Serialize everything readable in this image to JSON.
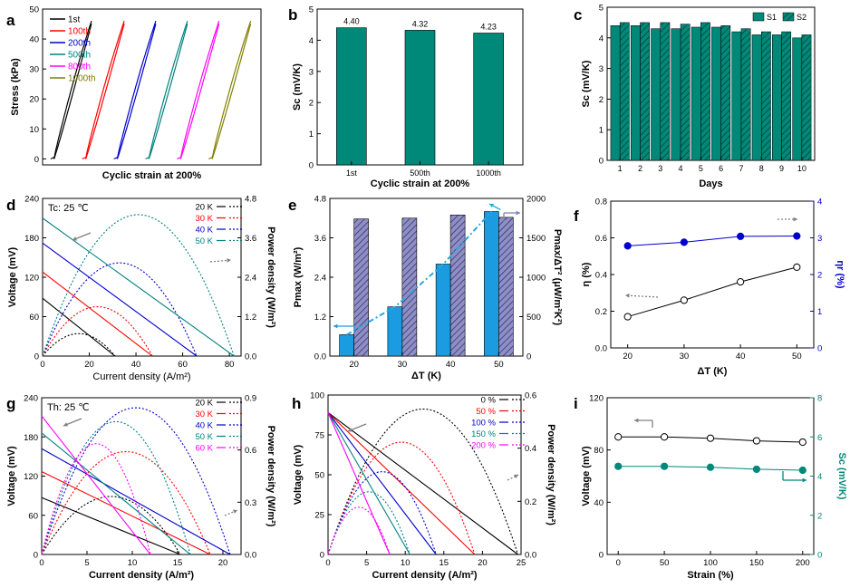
{
  "chart_data": [
    {
      "panel": "a",
      "type": "line",
      "xlabel": "Cyclic strain at 200%",
      "ylabel": "Stress (kPa)",
      "ylim": [
        -2,
        50
      ],
      "yticks": [
        0,
        10,
        20,
        30,
        40,
        50
      ],
      "legend_position": "top-left",
      "series": [
        {
          "name": "1st",
          "color": "#000000",
          "x_start": 0,
          "x_end": 0.65,
          "y_max": 46
        },
        {
          "name": "100th",
          "color": "#ff0000",
          "x_start": 0.55,
          "x_end": 1.22,
          "y_max": 46
        },
        {
          "name": "200th",
          "color": "#0000cc",
          "x_start": 1.1,
          "x_end": 1.77,
          "y_max": 46
        },
        {
          "name": "500th",
          "color": "#008080",
          "x_start": 1.65,
          "x_end": 2.32,
          "y_max": 46
        },
        {
          "name": "800th",
          "color": "#ff00ff",
          "x_start": 2.2,
          "x_end": 2.87,
          "y_max": 46
        },
        {
          "name": "1000th",
          "color": "#808000",
          "x_start": 2.75,
          "x_end": 3.42,
          "y_max": 46
        }
      ]
    },
    {
      "panel": "b",
      "type": "bar",
      "xlabel": "Cyclic strain at 200%",
      "ylabel": "Sc (mV/K)",
      "ylim": [
        0,
        5
      ],
      "yticks": [
        0,
        1,
        2,
        3,
        4,
        5
      ],
      "categories": [
        "1st",
        "500th",
        "1000th"
      ],
      "values": [
        4.4,
        4.32,
        4.23
      ],
      "value_labels": [
        "4.40",
        "4.32",
        "4.23"
      ],
      "color": "#008878"
    },
    {
      "panel": "c",
      "type": "bar",
      "xlabel": "Days",
      "ylabel": "Sc (mV/K)",
      "ylim": [
        0,
        5
      ],
      "yticks": [
        0,
        1,
        2,
        3,
        4,
        5
      ],
      "categories": [
        "1",
        "2",
        "3",
        "4",
        "5",
        "6",
        "7",
        "8",
        "9",
        "10"
      ],
      "legend_position": "top-right",
      "series": [
        {
          "name": "S1",
          "values": [
            4.4,
            4.4,
            4.3,
            4.3,
            4.35,
            4.35,
            4.2,
            4.1,
            4.1,
            4.0
          ],
          "color": "#008878"
        },
        {
          "name": "S2",
          "values": [
            4.5,
            4.5,
            4.5,
            4.45,
            4.5,
            4.4,
            4.3,
            4.2,
            4.2,
            4.1
          ],
          "color": "#008878",
          "hatch": true
        }
      ]
    },
    {
      "panel": "d",
      "type": "line",
      "annotation": "Tc: 25 ℃",
      "xlabel": "Current density (A/m²)",
      "ylabel": "Voltage (mV)",
      "y2label": "Power density (W/m²)",
      "xlim": [
        0,
        85
      ],
      "ylim": [
        0,
        240
      ],
      "y2lim": [
        0,
        4.8
      ],
      "xticks": [
        0,
        20,
        40,
        60,
        80
      ],
      "yticks": [
        0,
        60,
        120,
        180,
        240
      ],
      "y2ticks": [
        "0.0",
        "1.2",
        "2.4",
        "3.6",
        "4.8"
      ],
      "legend_position": "top-right",
      "series": [
        {
          "name": "20 K",
          "color": "#000000",
          "v0": 88,
          "isc": 31
        },
        {
          "name": "30 K",
          "color": "#ff0000",
          "v0": 128,
          "isc": 47
        },
        {
          "name": "40 K",
          "color": "#0000cc",
          "v0": 172,
          "isc": 66
        },
        {
          "name": "50 K",
          "color": "#008080",
          "v0": 210,
          "isc": 82
        }
      ]
    },
    {
      "panel": "e",
      "type": "bar",
      "xlabel": "ΔT (K)",
      "ylabel": "Pmax (W/m²)",
      "y2label": "Pmax/ΔT² (μW/m²K²)",
      "ylim": [
        0,
        4.8
      ],
      "y2lim": [
        0,
        2000
      ],
      "yticks": [
        "0.0",
        "1.2",
        "2.4",
        "3.6",
        "4.8"
      ],
      "y2ticks": [
        "0",
        "500",
        "1000",
        "1500",
        "2000"
      ],
      "categories": [
        "20",
        "30",
        "40",
        "50"
      ],
      "series": [
        {
          "name": "Pmax",
          "values": [
            0.65,
            1.5,
            2.8,
            4.4
          ],
          "color": "#1b9ce0",
          "axis": "left"
        },
        {
          "name": "Pmax/ΔT²",
          "values": [
            1740,
            1750,
            1790,
            1760
          ],
          "color": "#7f7fb8",
          "hatch": true,
          "axis": "right"
        }
      ],
      "trend_color": "#29a8e0"
    },
    {
      "panel": "f",
      "type": "line",
      "xlabel": "ΔT (K)",
      "ylabel": "η (%)",
      "y2label": "ηr (%)",
      "xlim": [
        17,
        53
      ],
      "ylim": [
        0,
        0.8
      ],
      "y2lim": [
        0,
        4
      ],
      "xticks": [
        20,
        30,
        40,
        50
      ],
      "yticks": [
        "0.0",
        "0.2",
        "0.4",
        "0.6",
        "0.8"
      ],
      "y2ticks": [
        "0",
        "1",
        "2",
        "3",
        "4"
      ],
      "series": [
        {
          "name": "η",
          "x": [
            20,
            30,
            40,
            50
          ],
          "values": [
            0.17,
            0.26,
            0.36,
            0.44
          ],
          "color": "#000000",
          "axis": "left",
          "marker": "open-circle"
        },
        {
          "name": "ηr",
          "x": [
            20,
            30,
            40,
            50
          ],
          "values": [
            2.78,
            2.88,
            3.04,
            3.05
          ],
          "color": "#0000cc",
          "axis": "right",
          "marker": "filled-circle"
        }
      ]
    },
    {
      "panel": "g",
      "type": "line",
      "annotation": "Th: 25 ℃",
      "xlabel": "Current density (A/m²)",
      "ylabel": "Voltage (mV)",
      "y2label": "Power density (W/m²)",
      "xlim": [
        0,
        22
      ],
      "ylim": [
        0,
        240
      ],
      "y2lim": [
        0,
        0.9
      ],
      "xticks": [
        0,
        5,
        10,
        15,
        20
      ],
      "yticks": [
        0,
        60,
        120,
        180,
        240
      ],
      "y2ticks": [
        "0.0",
        "0.3",
        "0.6",
        "0.9"
      ],
      "legend_position": "top-right",
      "series": [
        {
          "name": "20 K",
          "color": "#000000",
          "v0": 87,
          "isc": 15.3
        },
        {
          "name": "30 K",
          "color": "#ff0000",
          "v0": 127,
          "isc": 18.6
        },
        {
          "name": "40 K",
          "color": "#0000cc",
          "v0": 162,
          "isc": 20.8
        },
        {
          "name": "50 K",
          "color": "#008080",
          "v0": 186,
          "isc": 16.4
        },
        {
          "name": "60 K",
          "color": "#ff00ff",
          "v0": 212,
          "isc": 12.0
        }
      ]
    },
    {
      "panel": "h",
      "type": "line",
      "xlabel": "Current density (A/m²)",
      "ylabel": "Voltage (mV)",
      "y2label": "Power density (W/m²)",
      "xlim": [
        0,
        25
      ],
      "ylim": [
        0,
        100
      ],
      "y2lim": [
        0,
        0.6
      ],
      "xticks": [
        0,
        5,
        10,
        15,
        20,
        25
      ],
      "yticks": [
        0,
        25,
        50,
        75,
        100
      ],
      "y2ticks": [
        "0.0",
        "0.2",
        "0.4",
        "0.6"
      ],
      "legend_position": "top-right",
      "series": [
        {
          "name": "0 %",
          "color": "#000000",
          "v0": 89,
          "isc": 24.6
        },
        {
          "name": "50 %",
          "color": "#ff0000",
          "v0": 89,
          "isc": 19.0
        },
        {
          "name": "100 %",
          "color": "#0000cc",
          "v0": 89,
          "isc": 14.0
        },
        {
          "name": "150 %",
          "color": "#008080",
          "v0": 89,
          "isc": 10.6
        },
        {
          "name": "200 %",
          "color": "#ff00ff",
          "v0": 89,
          "isc": 8.0
        }
      ]
    },
    {
      "panel": "i",
      "type": "line",
      "xlabel": "Strain (%)",
      "ylabel": "Voltage (mV)",
      "y2label": "Sc (mV/K)",
      "xlim": [
        -12,
        212
      ],
      "ylim": [
        0,
        120
      ],
      "y2lim": [
        0,
        8
      ],
      "xticks": [
        0,
        50,
        100,
        150,
        200
      ],
      "yticks": [
        0,
        40,
        80,
        120
      ],
      "y2ticks": [
        0,
        2,
        4,
        6,
        8
      ],
      "series": [
        {
          "name": "Voltage",
          "x": [
            0,
            50,
            100,
            150,
            200
          ],
          "values": [
            90,
            90,
            89,
            87,
            86
          ],
          "color": "#000000",
          "axis": "left",
          "marker": "open-circle"
        },
        {
          "name": "Sc",
          "x": [
            0,
            50,
            100,
            150,
            200
          ],
          "values": [
            4.5,
            4.5,
            4.45,
            4.35,
            4.3
          ],
          "color": "#008878",
          "axis": "right",
          "marker": "filled-circle"
        }
      ]
    }
  ],
  "panel_letters": [
    "a",
    "b",
    "c",
    "d",
    "e",
    "f",
    "g",
    "h",
    "i"
  ]
}
